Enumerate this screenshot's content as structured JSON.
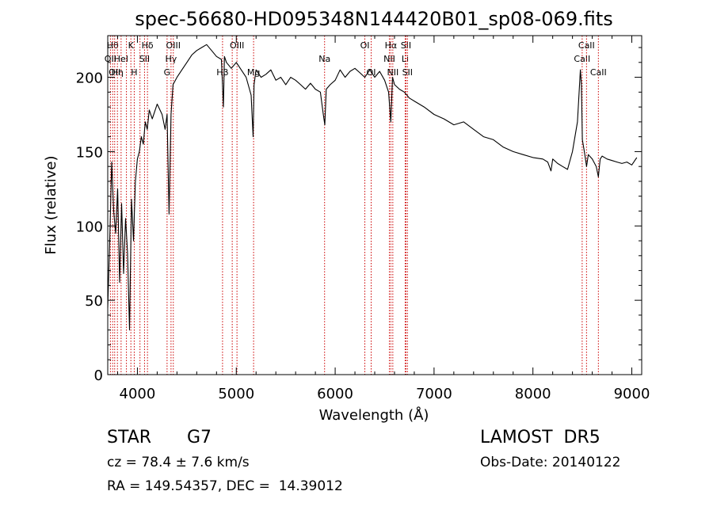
{
  "chart_data": {
    "type": "line",
    "title": "spec-56680-HD095348N144420B01_sp08-069.fits",
    "xlabel": "Wavelength (Å)",
    "ylabel": "Flux (relative)",
    "xlim": [
      3700,
      9100
    ],
    "ylim": [
      0,
      228
    ],
    "xticks": [
      4000,
      5000,
      6000,
      7000,
      8000,
      9000
    ],
    "xtick_labels": [
      "4000",
      "5000",
      "6000",
      "7000",
      "8000",
      "9000"
    ],
    "yticks": [
      0,
      50,
      100,
      150,
      200
    ],
    "ytick_labels": [
      "0",
      "50",
      "100",
      "150",
      "200"
    ],
    "grid": false,
    "series": [
      {
        "x": [
          3700,
          3720,
          3740,
          3760,
          3780,
          3800,
          3820,
          3840,
          3860,
          3880,
          3900,
          3920,
          3940,
          3960,
          3980,
          4000,
          4020,
          4040,
          4060,
          4080,
          4100,
          4120,
          4150,
          4200,
          4250,
          4280,
          4300,
          4320,
          4340,
          4360,
          4400,
          4450,
          4500,
          4550,
          4600,
          4650,
          4700,
          4750,
          4800,
          4850,
          4870,
          4880,
          4900,
          4950,
          5000,
          5050,
          5100,
          5150,
          5170,
          5180,
          5200,
          5250,
          5300,
          5350,
          5400,
          5450,
          5500,
          5550,
          5600,
          5650,
          5700,
          5750,
          5800,
          5850,
          5880,
          5895,
          5910,
          5950,
          6000,
          6050,
          6100,
          6150,
          6200,
          6250,
          6300,
          6350,
          6400,
          6450,
          6500,
          6540,
          6563,
          6580,
          6600,
          6650,
          6700,
          6750,
          6800,
          6900,
          7000,
          7100,
          7200,
          7300,
          7400,
          7500,
          7600,
          7700,
          7800,
          7900,
          8000,
          8100,
          8150,
          8183,
          8200,
          8250,
          8300,
          8350,
          8400,
          8450,
          8480,
          8490,
          8500,
          8520,
          8542,
          8560,
          8600,
          8640,
          8662,
          8680,
          8700,
          8750,
          8800,
          8850,
          8900,
          8950,
          9000,
          9050
        ],
        "y": [
          45,
          90,
          143,
          110,
          95,
          125,
          62,
          115,
          68,
          105,
          82,
          30,
          118,
          90,
          130,
          145,
          150,
          160,
          155,
          170,
          165,
          178,
          172,
          182,
          175,
          165,
          175,
          108,
          175,
          195,
          200,
          205,
          210,
          215,
          218,
          220,
          222,
          218,
          214,
          212,
          180,
          214,
          210,
          206,
          210,
          205,
          200,
          188,
          160,
          195,
          205,
          200,
          202,
          205,
          198,
          200,
          195,
          200,
          198,
          195,
          192,
          196,
          192,
          190,
          175,
          168,
          192,
          195,
          198,
          205,
          200,
          204,
          206,
          203,
          200,
          205,
          200,
          204,
          198,
          190,
          170,
          200,
          195,
          192,
          190,
          186,
          184,
          180,
          175,
          172,
          168,
          170,
          165,
          160,
          158,
          153,
          150,
          148,
          146,
          145,
          143,
          137,
          145,
          142,
          140,
          138,
          150,
          170,
          205,
          195,
          158,
          150,
          140,
          148,
          145,
          140,
          133,
          145,
          147,
          145,
          144,
          143,
          142,
          143,
          141,
          146
        ]
      }
    ],
    "line_markers": [
      {
        "wavelength": 3750,
        "label": "Hθ",
        "row": 1
      },
      {
        "wavelength": 3727,
        "label": "OII",
        "row": 2
      },
      {
        "wavelength": 3798,
        "label": "Hη",
        "row": 3
      },
      {
        "wavelength": 3770,
        "label": "OII",
        "row": 3
      },
      {
        "wavelength": 3835,
        "label": "HeI",
        "row": 2
      },
      {
        "wavelength": 3889,
        "label": "",
        "row": 0
      },
      {
        "wavelength": 3934,
        "label": "K",
        "row": 1
      },
      {
        "wavelength": 3968,
        "label": "H",
        "row": 3
      },
      {
        "wavelength": 4026,
        "label": "",
        "row": 0
      },
      {
        "wavelength": 4072,
        "label": "SII",
        "row": 2
      },
      {
        "wavelength": 4102,
        "label": "Hδ",
        "row": 1
      },
      {
        "wavelength": 4300,
        "label": "G",
        "row": 3
      },
      {
        "wavelength": 4340,
        "label": "Hγ",
        "row": 2
      },
      {
        "wavelength": 4363,
        "label": "OIII",
        "row": 1
      },
      {
        "wavelength": 4861,
        "label": "Hβ",
        "row": 3
      },
      {
        "wavelength": 4959,
        "label": "",
        "row": 0
      },
      {
        "wavelength": 5007,
        "label": "OIII",
        "row": 1
      },
      {
        "wavelength": 5175,
        "label": "Mg",
        "row": 3
      },
      {
        "wavelength": 5893,
        "label": "Na",
        "row": 2
      },
      {
        "wavelength": 6300,
        "label": "OI",
        "row": 1
      },
      {
        "wavelength": 6364,
        "label": "OI",
        "row": 3
      },
      {
        "wavelength": 6548,
        "label": "NII",
        "row": 2
      },
      {
        "wavelength": 6563,
        "label": "Hα",
        "row": 1
      },
      {
        "wavelength": 6583,
        "label": "NII",
        "row": 3
      },
      {
        "wavelength": 6708,
        "label": "Li",
        "row": 2
      },
      {
        "wavelength": 6716,
        "label": "SII",
        "row": 1
      },
      {
        "wavelength": 6731,
        "label": "SII",
        "row": 3
      },
      {
        "wavelength": 8498,
        "label": "CaII",
        "row": 2
      },
      {
        "wavelength": 8542,
        "label": "CaII",
        "row": 1
      },
      {
        "wavelength": 8662,
        "label": "CaII",
        "row": 3
      }
    ],
    "colors": {
      "spectrum": "#000000",
      "markers": "#cc0000",
      "axes": "#000000"
    }
  },
  "info": {
    "object_class": "STAR",
    "subclass": "G7",
    "survey": "LAMOST  DR5",
    "cz": "cz = 78.4 ± 7.6 km/s",
    "obs_date": "Obs-Date: 20140122",
    "ra_dec": "RA = 149.54357, DEC =  14.39012"
  }
}
